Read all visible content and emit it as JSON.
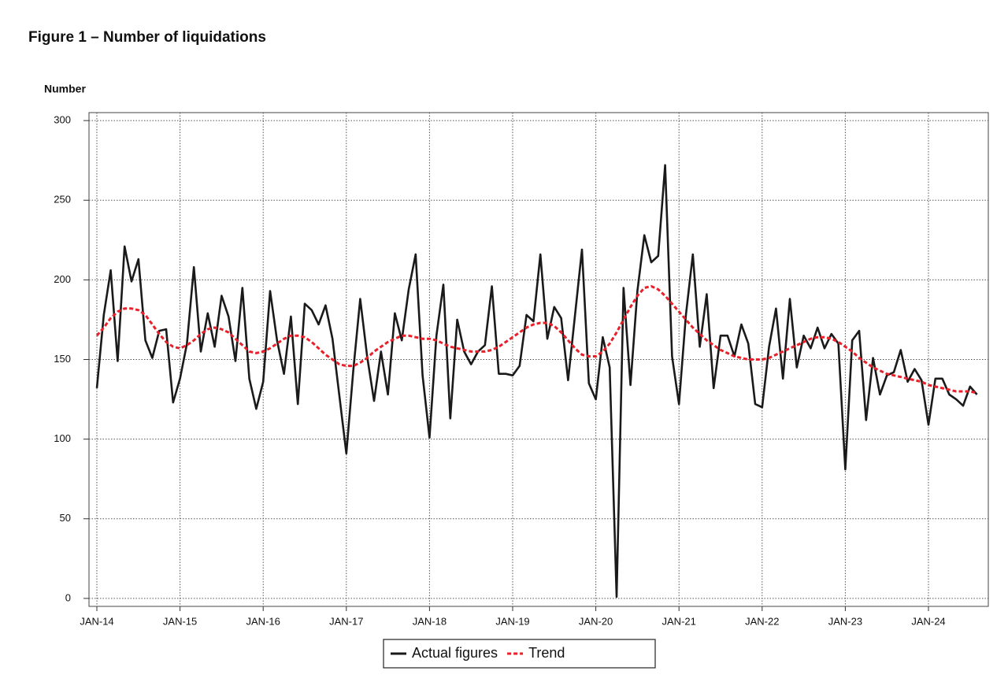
{
  "chart_data": {
    "type": "line",
    "title": "Figure 1 – Number of liquidations",
    "y_label": "Number",
    "categories": [
      "JAN-14",
      null,
      null,
      null,
      null,
      null,
      null,
      null,
      null,
      null,
      null,
      null,
      "JAN-15",
      null,
      null,
      null,
      null,
      null,
      null,
      null,
      null,
      null,
      null,
      null,
      "JAN-16",
      null,
      null,
      null,
      null,
      null,
      null,
      null,
      null,
      null,
      null,
      null,
      "JAN-17",
      null,
      null,
      null,
      null,
      null,
      null,
      null,
      null,
      null,
      null,
      null,
      "JAN-18",
      null,
      null,
      null,
      null,
      null,
      null,
      null,
      null,
      null,
      null,
      null,
      "JAN-19",
      null,
      null,
      null,
      null,
      null,
      null,
      null,
      null,
      null,
      null,
      null,
      "JAN-20",
      null,
      null,
      null,
      null,
      null,
      null,
      null,
      null,
      null,
      null,
      null,
      "JAN-21",
      null,
      null,
      null,
      null,
      null,
      null,
      null,
      null,
      null,
      null,
      null,
      "JAN-22",
      null,
      null,
      null,
      null,
      null,
      null,
      null,
      null,
      null,
      null,
      null,
      "JAN-23",
      null,
      null,
      null,
      null,
      null,
      null,
      null,
      null,
      null,
      null,
      null,
      "JAN-24",
      null,
      null,
      null,
      null,
      null,
      null,
      null
    ],
    "series": [
      {
        "name": "Actual figures",
        "color": "#1a1a1a",
        "dashed": false,
        "values": [
          132,
          178,
          206,
          149,
          221,
          199,
          213,
          162,
          151,
          168,
          169,
          123,
          138,
          160,
          208,
          155,
          179,
          158,
          190,
          177,
          149,
          195,
          138,
          119,
          136,
          193,
          162,
          141,
          177,
          122,
          185,
          181,
          172,
          184,
          163,
          127,
          91,
          143,
          188,
          152,
          124,
          155,
          128,
          179,
          162,
          194,
          216,
          140,
          101,
          165,
          197,
          113,
          175,
          155,
          147,
          155,
          159,
          196,
          141,
          141,
          140,
          146,
          178,
          174,
          216,
          163,
          183,
          176,
          137,
          178,
          219,
          135,
          125,
          164,
          145,
          1,
          195,
          134,
          193,
          228,
          211,
          215,
          272,
          152,
          122,
          178,
          216,
          158,
          191,
          132,
          165,
          165,
          152,
          172,
          160,
          122,
          120,
          158,
          182,
          138,
          188,
          145,
          165,
          157,
          170,
          157,
          166,
          160,
          81,
          162,
          168,
          112,
          151,
          128,
          140,
          142,
          156,
          136,
          144,
          137,
          109,
          138,
          138,
          128,
          125,
          121,
          133,
          128
        ]
      },
      {
        "name": "Trend",
        "color": "#e8202a",
        "dashed": true,
        "values": [
          165,
          170,
          176,
          180,
          182,
          182,
          181,
          178,
          172,
          166,
          161,
          158,
          157,
          159,
          162,
          166,
          169,
          170,
          169,
          167,
          163,
          159,
          155,
          154,
          155,
          157,
          160,
          163,
          165,
          165,
          164,
          161,
          157,
          153,
          150,
          147,
          146,
          146,
          148,
          151,
          155,
          158,
          161,
          163,
          165,
          165,
          164,
          163,
          163,
          162,
          160,
          158,
          157,
          156,
          155,
          155,
          155,
          156,
          158,
          161,
          164,
          167,
          170,
          172,
          173,
          173,
          171,
          167,
          162,
          157,
          153,
          152,
          152,
          155,
          160,
          167,
          175,
          183,
          190,
          195,
          196,
          194,
          190,
          185,
          180,
          175,
          170,
          166,
          162,
          159,
          156,
          154,
          152,
          151,
          150,
          150,
          150,
          151,
          153,
          155,
          157,
          159,
          161,
          163,
          164,
          164,
          163,
          161,
          158,
          155,
          151,
          148,
          145,
          143,
          141,
          140,
          139,
          138,
          137,
          136,
          134,
          133,
          132,
          131,
          130,
          130,
          130,
          129
        ]
      }
    ],
    "ylim": [
      -5,
      305
    ],
    "yticks": [
      0,
      50,
      100,
      150,
      200,
      250,
      300
    ],
    "grid": true,
    "legend": "bottom"
  }
}
